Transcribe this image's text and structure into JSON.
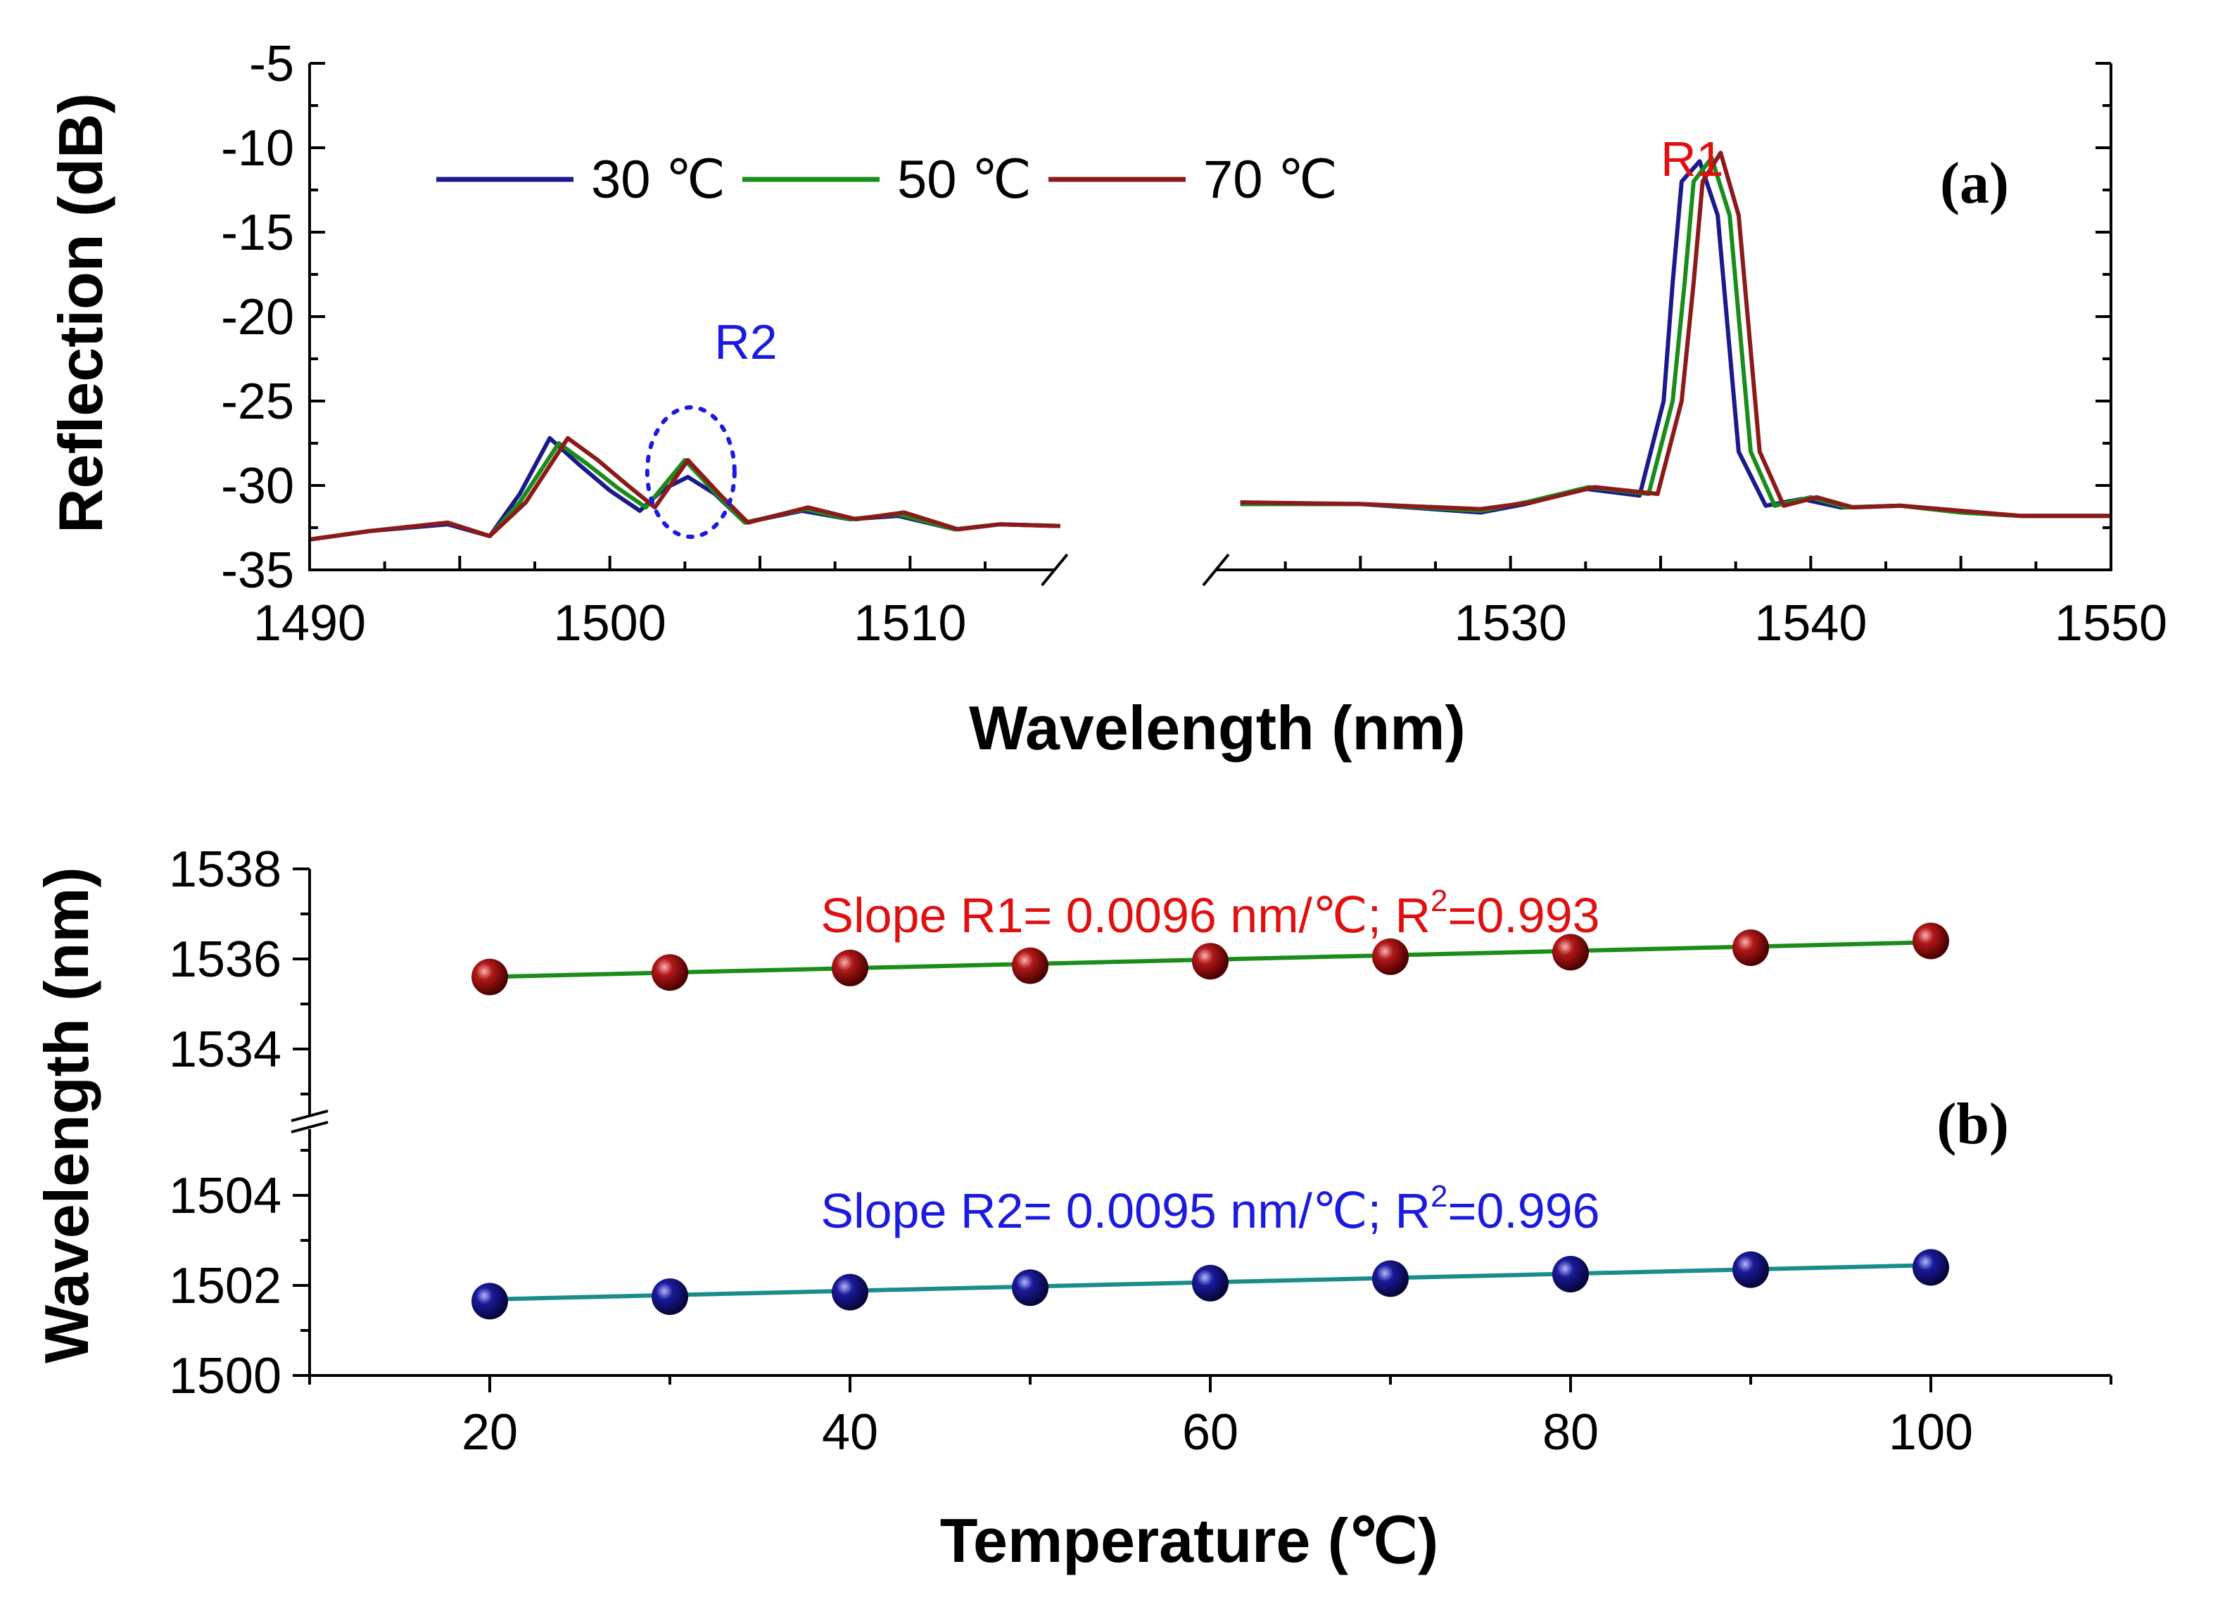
{
  "chart_data": [
    {
      "type": "line",
      "panel_label": "(a)",
      "xlabel": "Wavelength (nm)",
      "ylabel": "Reflection (dB)",
      "xlim": [
        1490,
        1550
      ],
      "x_break": [
        1515,
        1520
      ],
      "ylim": [
        -35,
        -5
      ],
      "x_ticks": [
        1490,
        1500,
        1510,
        1530,
        1540,
        1550
      ],
      "y_ticks": [
        -5,
        -10,
        -15,
        -20,
        -25,
        -30,
        -35
      ],
      "legend_position": "top-left",
      "series": [
        {
          "name": "30 ℃",
          "color": "#1a1a8c",
          "x": [
            1490,
            1492,
            1494.6,
            1496,
            1497,
            1498,
            1499,
            1500,
            1501,
            1501.8,
            1502.6,
            1503.5,
            1504.5,
            1506.4,
            1508,
            1509.6,
            1511.5,
            1513,
            1515,
            1521,
            1525,
            1529,
            1530.5,
            1532.5,
            1534.3,
            1535.1,
            1535.4,
            1535.7,
            1536.3,
            1536.9,
            1537.6,
            1538.5,
            1539.7,
            1541,
            1543,
            1545,
            1547,
            1550
          ],
          "y": [
            -33.2,
            -32.7,
            -32.3,
            -33,
            -30.5,
            -27.2,
            -28.8,
            -30.3,
            -31.5,
            -30.2,
            -29.5,
            -30.5,
            -32.2,
            -31.5,
            -32,
            -31.8,
            -32.6,
            -32.3,
            -32.4,
            -31.1,
            -31.1,
            -31.6,
            -31.1,
            -30.2,
            -30.6,
            -25,
            -18,
            -12,
            -10.8,
            -14,
            -28,
            -31.2,
            -30.8,
            -31.3,
            -31.2,
            -31.6,
            -31.8,
            -31.8
          ]
        },
        {
          "name": "50 ℃",
          "color": "#1a8c1a",
          "x": [
            1490,
            1492,
            1494.6,
            1496,
            1497,
            1498.3,
            1499.3,
            1500.3,
            1501.2,
            1502.5,
            1503.6,
            1504.5,
            1506.5,
            1508,
            1509.6,
            1511.5,
            1513,
            1515,
            1521,
            1525,
            1529,
            1530.5,
            1532.6,
            1534.6,
            1535.4,
            1535.8,
            1536.1,
            1536.7,
            1537.3,
            1538,
            1538.8,
            1540,
            1541.2,
            1543,
            1545,
            1547,
            1550
          ],
          "y": [
            -33.2,
            -32.7,
            -32.2,
            -33,
            -31,
            -27.5,
            -28.8,
            -30.2,
            -31.3,
            -28.5,
            -30.6,
            -32.2,
            -31.4,
            -32,
            -31.7,
            -32.6,
            -32.3,
            -32.4,
            -31.1,
            -31.1,
            -31.5,
            -31,
            -30.1,
            -30.5,
            -25,
            -18,
            -12,
            -10.6,
            -14,
            -28,
            -31.2,
            -30.7,
            -31.3,
            -31.2,
            -31.6,
            -31.8,
            -31.8
          ]
        },
        {
          "name": "70 ℃",
          "color": "#8c1a1a",
          "x": [
            1490,
            1492,
            1494.6,
            1496,
            1497.2,
            1498.6,
            1499.6,
            1500.6,
            1501.5,
            1502.6,
            1503.7,
            1504.6,
            1506.6,
            1508.2,
            1509.8,
            1511.6,
            1513,
            1515,
            1521,
            1525,
            1529,
            1530.7,
            1532.8,
            1534.9,
            1535.7,
            1536.1,
            1536.4,
            1537,
            1537.6,
            1538.3,
            1539.1,
            1540.2,
            1541.4,
            1543,
            1545,
            1547,
            1550
          ],
          "y": [
            -33.2,
            -32.7,
            -32.2,
            -33,
            -31,
            -27.2,
            -28.5,
            -30,
            -31.3,
            -28.5,
            -30.6,
            -32.2,
            -31.3,
            -32,
            -31.6,
            -32.6,
            -32.3,
            -32.4,
            -31,
            -31.1,
            -31.4,
            -31,
            -30.1,
            -30.5,
            -25,
            -18,
            -12,
            -10.3,
            -14,
            -28,
            -31.2,
            -30.7,
            -31.3,
            -31.2,
            -31.5,
            -31.8,
            -31.8
          ]
        }
      ],
      "annotations": [
        {
          "text": "R1",
          "color": "#e01010",
          "x": 1535.8,
          "y": -10.5
        },
        {
          "text": "R2",
          "color": "#1a1ae0",
          "x": 1502.7,
          "y": -29,
          "circled": true
        }
      ]
    },
    {
      "type": "scatter",
      "panel_label": "(b)",
      "xlabel": "Temperature (℃)",
      "ylabel": "Wavelength (nm)",
      "xlim": [
        10,
        110
      ],
      "x_ticks": [
        20,
        40,
        60,
        80,
        100
      ],
      "y_break": [
        1505,
        1533
      ],
      "ylim_lower": [
        1500,
        1505
      ],
      "ylim_upper": [
        1533,
        1538
      ],
      "y_ticks": [
        1500,
        1502,
        1504,
        1534,
        1536,
        1538
      ],
      "series": [
        {
          "name": "R1",
          "marker_color": "#8b0000",
          "fit_color": "#1a8c1a",
          "x": [
            20,
            30,
            40,
            50,
            60,
            70,
            80,
            90,
            100
          ],
          "y": [
            1535.6,
            1535.7,
            1535.8,
            1535.85,
            1535.95,
            1536.05,
            1536.15,
            1536.25,
            1536.4
          ],
          "fit_intercept": 1535.41,
          "fit_slope": 0.0096,
          "annotation": {
            "prefix": "Slope R1= 0.0096 nm/℃; R",
            "sup": "2",
            "suffix": "=0.993",
            "color": "#e01010"
          }
        },
        {
          "name": "R2",
          "marker_color": "#10107a",
          "fit_color": "#1a8c8c",
          "x": [
            20,
            30,
            40,
            50,
            60,
            70,
            80,
            90,
            100
          ],
          "y": [
            1501.65,
            1501.75,
            1501.85,
            1501.95,
            1502.05,
            1502.15,
            1502.25,
            1502.35,
            1502.4
          ],
          "fit_intercept": 1501.5,
          "fit_slope": 0.0095,
          "annotation": {
            "prefix": "Slope R2= 0.0095 nm/℃; R",
            "sup": "2",
            "suffix": "=0.996",
            "color": "#1a1ae0"
          }
        }
      ]
    }
  ]
}
